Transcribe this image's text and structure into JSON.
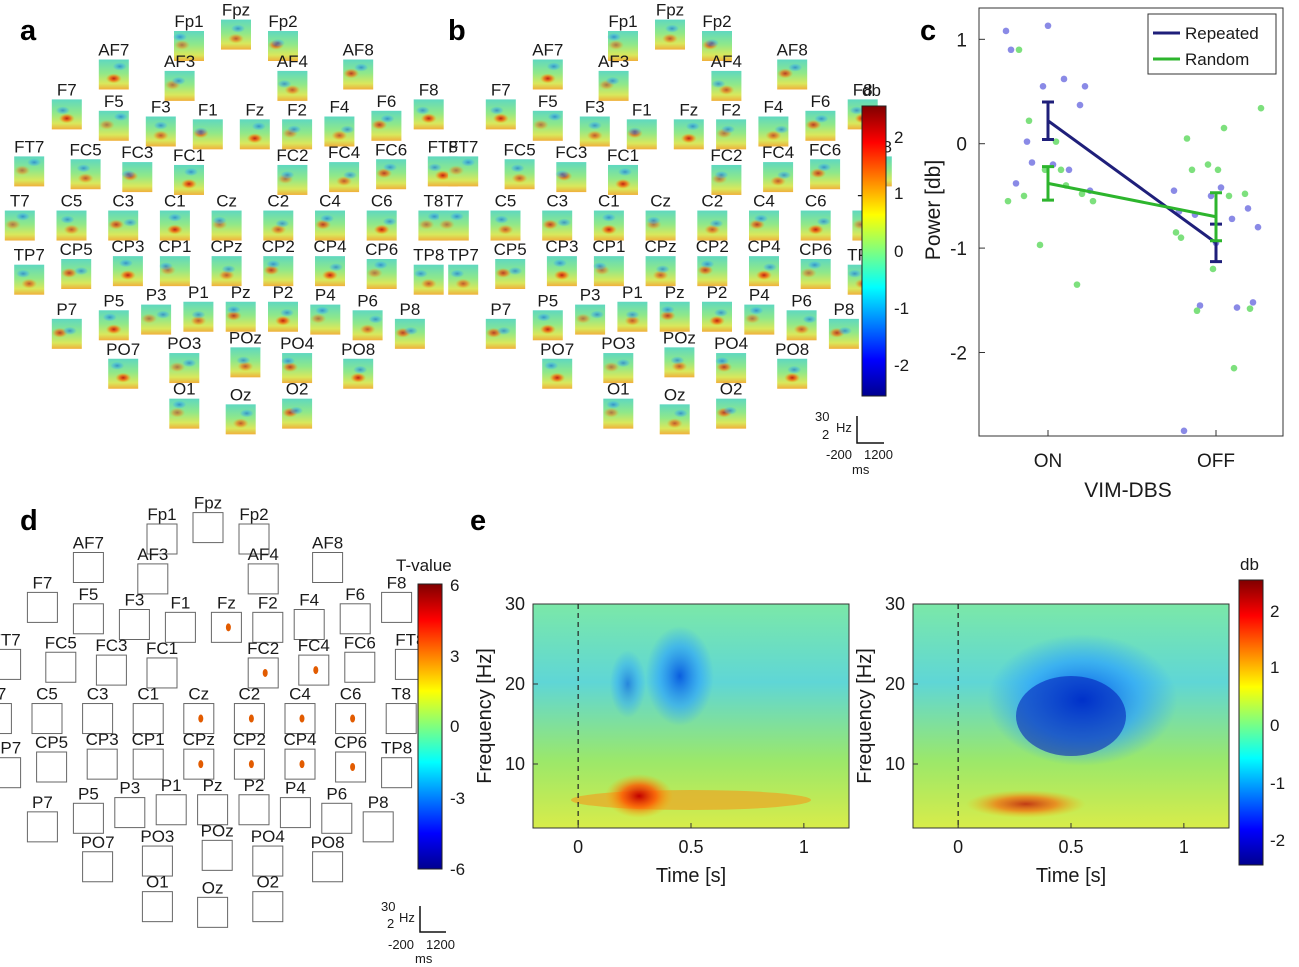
{
  "panels": {
    "a": "a",
    "b": "b",
    "c": "c",
    "d": "d",
    "e": "e"
  },
  "electrode_layout": [
    {
      "name": "Fp1",
      "row": 0,
      "col": -1
    },
    {
      "name": "Fpz",
      "row": -0.4,
      "col": 0
    },
    {
      "name": "Fp2",
      "row": 0,
      "col": 1
    },
    {
      "name": "AF7",
      "row": 1,
      "col": -2.6
    },
    {
      "name": "AF3",
      "row": 1.4,
      "col": -1.2
    },
    {
      "name": "AF4",
      "row": 1.4,
      "col": 1.2
    },
    {
      "name": "AF8",
      "row": 1,
      "col": 2.6
    },
    {
      "name": "F7",
      "row": 2.4,
      "col": -3.6
    },
    {
      "name": "F5",
      "row": 2.8,
      "col": -2.6
    },
    {
      "name": "F3",
      "row": 3,
      "col": -1.6
    },
    {
      "name": "F1",
      "row": 3.1,
      "col": -0.6
    },
    {
      "name": "Fz",
      "row": 3.1,
      "col": 0.4
    },
    {
      "name": "F2",
      "row": 3.1,
      "col": 1.3
    },
    {
      "name": "F4",
      "row": 3,
      "col": 2.2
    },
    {
      "name": "F6",
      "row": 2.8,
      "col": 3.2
    },
    {
      "name": "F8",
      "row": 2.4,
      "col": 4.1
    },
    {
      "name": "FT7",
      "row": 4.4,
      "col": -4.4
    },
    {
      "name": "FC5",
      "row": 4.5,
      "col": -3.2
    },
    {
      "name": "FC3",
      "row": 4.6,
      "col": -2.1
    },
    {
      "name": "FC1",
      "row": 4.7,
      "col": -1.0
    },
    {
      "name": "FC2",
      "row": 4.7,
      "col": 1.2
    },
    {
      "name": "FC4",
      "row": 4.6,
      "col": 2.3
    },
    {
      "name": "FC6",
      "row": 4.5,
      "col": 3.3
    },
    {
      "name": "FT8",
      "row": 4.4,
      "col": 4.4
    },
    {
      "name": "T7",
      "row": 6.3,
      "col": -4.6
    },
    {
      "name": "C5",
      "row": 6.3,
      "col": -3.5
    },
    {
      "name": "C3",
      "row": 6.3,
      "col": -2.4
    },
    {
      "name": "C1",
      "row": 6.3,
      "col": -1.3
    },
    {
      "name": "Cz",
      "row": 6.3,
      "col": -0.2
    },
    {
      "name": "C2",
      "row": 6.3,
      "col": 0.9
    },
    {
      "name": "C4",
      "row": 6.3,
      "col": 2.0
    },
    {
      "name": "C6",
      "row": 6.3,
      "col": 3.1
    },
    {
      "name": "T8",
      "row": 6.3,
      "col": 4.2
    },
    {
      "name": "TP7",
      "row": 8.2,
      "col": -4.4
    },
    {
      "name": "CP5",
      "row": 8.0,
      "col": -3.4
    },
    {
      "name": "CP3",
      "row": 7.9,
      "col": -2.3
    },
    {
      "name": "CP1",
      "row": 7.9,
      "col": -1.3
    },
    {
      "name": "CPz",
      "row": 7.9,
      "col": -0.2
    },
    {
      "name": "CP2",
      "row": 7.9,
      "col": 0.9
    },
    {
      "name": "CP4",
      "row": 7.9,
      "col": 2.0
    },
    {
      "name": "CP6",
      "row": 8.0,
      "col": 3.1
    },
    {
      "name": "TP8",
      "row": 8.2,
      "col": 4.1
    },
    {
      "name": "P7",
      "row": 10.1,
      "col": -3.6
    },
    {
      "name": "P5",
      "row": 9.8,
      "col": -2.6
    },
    {
      "name": "P3",
      "row": 9.6,
      "col": -1.7
    },
    {
      "name": "P1",
      "row": 9.5,
      "col": -0.8
    },
    {
      "name": "Pz",
      "row": 9.5,
      "col": 0.1
    },
    {
      "name": "P2",
      "row": 9.5,
      "col": 1.0
    },
    {
      "name": "P4",
      "row": 9.6,
      "col": 1.9
    },
    {
      "name": "P6",
      "row": 9.8,
      "col": 2.8
    },
    {
      "name": "P8",
      "row": 10.1,
      "col": 3.7
    },
    {
      "name": "PO7",
      "row": 11.5,
      "col": -2.4
    },
    {
      "name": "PO3",
      "row": 11.3,
      "col": -1.1
    },
    {
      "name": "POz",
      "row": 11.1,
      "col": 0.2
    },
    {
      "name": "PO4",
      "row": 11.3,
      "col": 1.3
    },
    {
      "name": "PO8",
      "row": 11.5,
      "col": 2.6
    },
    {
      "name": "O1",
      "row": 12.9,
      "col": -1.1
    },
    {
      "name": "Oz",
      "row": 13.1,
      "col": 0.1
    },
    {
      "name": "O2",
      "row": 12.9,
      "col": 1.3
    }
  ],
  "scale_bar": {
    "freq_top": "30",
    "freq_bottom": "2",
    "freq_unit": "Hz",
    "time_start": "-200",
    "time_end": "1200",
    "time_unit": "ms"
  },
  "colorbar_ab": {
    "title": "db",
    "ticks": [
      "2",
      "1",
      "0",
      "-1",
      "-2"
    ]
  },
  "colorbar_d": {
    "title": "T-value",
    "ticks": [
      "6",
      "3",
      "0",
      "-3",
      "-6"
    ]
  },
  "colorbar_e": {
    "title": "db",
    "ticks": [
      "2",
      "1",
      "0",
      "-1",
      "-2"
    ]
  },
  "d_significant": [
    "FC2",
    "FC4",
    "Cz",
    "C2",
    "C4",
    "C6",
    "CPz",
    "CP2",
    "CP4",
    "CP6",
    "Fz"
  ],
  "colors": {
    "repeated": "#1f1f7a",
    "random": "#2db52d",
    "repeated_dots": "#8a8ae6",
    "random_dots": "#7de07d"
  },
  "chart_data": [
    {
      "type": "scatter",
      "panel": "c",
      "xlabel": "VIM-DBS",
      "ylabel": "Power [db]",
      "categories": [
        "ON",
        "OFF"
      ],
      "ylim": [
        -2.8,
        1.3
      ],
      "yticks": [
        "1",
        "0",
        "-1",
        "-2"
      ],
      "legend": "top-right",
      "series": [
        {
          "name": "Repeated",
          "means": [
            0.22,
            -0.95
          ],
          "errors": [
            0.18,
            0.18
          ],
          "points": {
            "ON": [
              1.08,
              0.55,
              0.37,
              0.02,
              0.62,
              0.9,
              1.13,
              0.55,
              -0.18,
              -0.25,
              -0.38,
              -0.2,
              -0.45
            ],
            "OFF": [
              -0.45,
              -0.5,
              -0.62,
              -0.68,
              -0.72,
              -0.65,
              -0.95,
              -1.52,
              -1.55,
              -1.57,
              -2.75,
              -0.42,
              -0.8
            ]
          }
        },
        {
          "name": "Random",
          "means": [
            -0.38,
            -0.7
          ],
          "errors": [
            0.16,
            0.23
          ],
          "points": {
            "ON": [
              0.9,
              0.02,
              -0.55,
              -0.97,
              -1.35,
              -0.5,
              -0.25,
              -0.55,
              -0.25,
              -0.48,
              0.22,
              -0.4
            ],
            "OFF": [
              0.05,
              0.15,
              0.34,
              -0.2,
              -0.48,
              -0.25,
              -0.5,
              -0.85,
              -1.2,
              -1.58,
              -1.6,
              -2.15,
              -0.9,
              -0.25
            ]
          }
        }
      ]
    },
    {
      "type": "heatmap",
      "panel": "e-left",
      "xlabel": "Time [s]",
      "ylabel": "Frequency [Hz]",
      "xticks": [
        "0",
        "0.5",
        "1"
      ],
      "yticks": [
        "10",
        "20",
        "30"
      ],
      "xlim": [
        -0.2,
        1.2
      ],
      "ylim": [
        2,
        30
      ]
    },
    {
      "type": "heatmap",
      "panel": "e-right",
      "xlabel": "Time [s]",
      "ylabel": "Frequency [Hz]",
      "xticks": [
        "0",
        "0.5",
        "1"
      ],
      "yticks": [
        "10",
        "20",
        "30"
      ],
      "xlim": [
        -0.2,
        1.2
      ],
      "ylim": [
        2,
        30
      ]
    }
  ]
}
